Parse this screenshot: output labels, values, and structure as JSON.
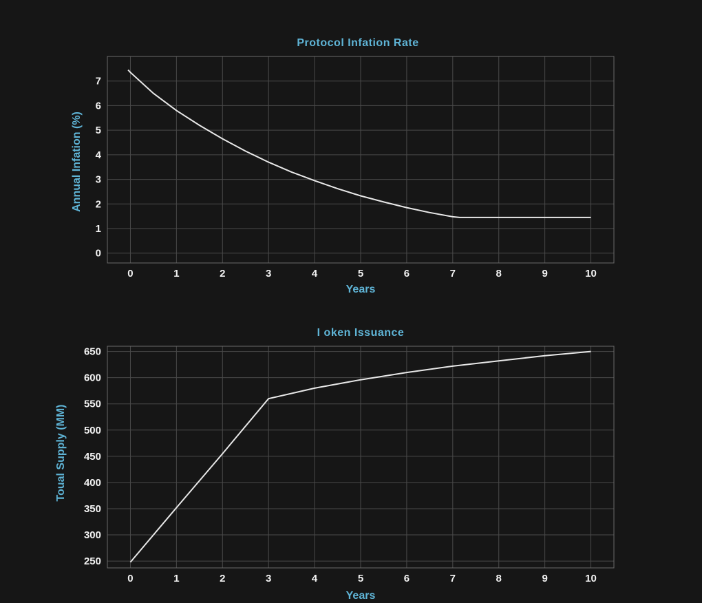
{
  "chart_data": [
    {
      "type": "line",
      "title": "Protocol Infation Rate",
      "xlabel": "Years",
      "ylabel": "Annual Infation (%)",
      "xlim": [
        -0.5,
        10.5
      ],
      "ylim": [
        -0.4,
        8.0
      ],
      "x_ticks": [
        0,
        1,
        2,
        3,
        4,
        5,
        6,
        7,
        8,
        9,
        10
      ],
      "y_ticks": [
        0,
        1,
        2,
        3,
        4,
        5,
        6,
        7
      ],
      "grid": true,
      "series": [
        {
          "x": [
            -0.05,
            0,
            0.5,
            1,
            1.5,
            2,
            2.5,
            3,
            3.5,
            4,
            4.5,
            5,
            5.5,
            6,
            6.5,
            7,
            7.15,
            8,
            9,
            10
          ],
          "y": [
            7.45,
            7.35,
            6.5,
            5.8,
            5.2,
            4.65,
            4.15,
            3.7,
            3.3,
            2.95,
            2.62,
            2.33,
            2.08,
            1.85,
            1.65,
            1.48,
            1.45,
            1.45,
            1.45,
            1.45
          ],
          "color": "#e8e8e8"
        }
      ]
    },
    {
      "type": "line",
      "title": "I oken Issuance",
      "xlabel": "Years",
      "ylabel": "Toual Supply (MM)",
      "xlim": [
        -0.5,
        10.5
      ],
      "ylim": [
        237,
        660
      ],
      "x_ticks": [
        0,
        1,
        2,
        3,
        4,
        5,
        6,
        7,
        8,
        9,
        10
      ],
      "y_ticks": [
        250,
        300,
        350,
        400,
        450,
        500,
        550,
        600,
        650
      ],
      "grid": true,
      "series": [
        {
          "x": [
            0,
            1,
            2,
            3,
            4,
            5,
            6,
            7,
            8,
            9,
            10
          ],
          "y": [
            248,
            352,
            455,
            560,
            580,
            596,
            610,
            622,
            632,
            642,
            650
          ],
          "color": "#e8e8e8"
        }
      ]
    }
  ]
}
